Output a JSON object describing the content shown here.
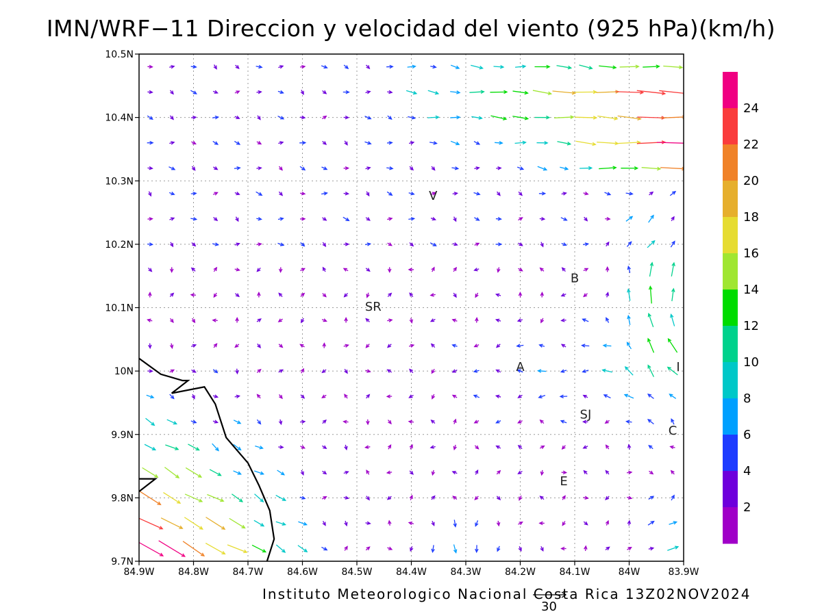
{
  "title": "IMN/WRF−11 Direccion y velocidad del viento (925 hPa)(km/h)",
  "footer": "Instituto Meteorologico Nacional Costa Rica  13Z02NOV2024",
  "reference_vector": {
    "label": "30",
    "speed": 30
  },
  "axes": {
    "lon_ticks": [
      "84.9W",
      "84.8W",
      "84.7W",
      "84.6W",
      "84.5W",
      "84.4W",
      "84.3W",
      "84.2W",
      "84.1W",
      "84W",
      "83.9W"
    ],
    "lat_ticks": [
      "10.5N",
      "10.4N",
      "10.3N",
      "10.2N",
      "10.1N",
      "10N",
      "9.9N",
      "9.8N",
      "9.7N"
    ],
    "lon_range": [
      -84.9,
      -83.9
    ],
    "lat_range": [
      9.7,
      10.5
    ],
    "grid": true
  },
  "colorbar": {
    "labels": [
      "2",
      "4",
      "6",
      "8",
      "10",
      "12",
      "14",
      "16",
      "18",
      "20",
      "22",
      "24"
    ],
    "colors": [
      "#a000c8",
      "#6e00dc",
      "#1e3cff",
      "#00a0ff",
      "#00c8c8",
      "#00d28c",
      "#00dc00",
      "#a0e632",
      "#e6dc32",
      "#e6af2d",
      "#f08228",
      "#fa3c3c",
      "#f00082"
    ]
  },
  "map_labels": [
    {
      "text": "V",
      "lon": -84.36,
      "lat": 10.27
    },
    {
      "text": "SR",
      "lon": -84.47,
      "lat": 10.095
    },
    {
      "text": "B",
      "lon": -84.1,
      "lat": 10.14
    },
    {
      "text": "A",
      "lon": -84.2,
      "lat": 10.0
    },
    {
      "text": "SJ",
      "lon": -84.08,
      "lat": 9.925
    },
    {
      "text": "C",
      "lon": -83.92,
      "lat": 9.9
    },
    {
      "text": "E",
      "lon": -84.12,
      "lat": 9.82
    },
    {
      "text": "I",
      "lon": -83.91,
      "lat": 10.0
    }
  ],
  "coastline": [
    [
      -84.9,
      10.02
    ],
    [
      -84.86,
      9.995
    ],
    [
      -84.82,
      9.985
    ],
    [
      -84.81,
      9.985
    ],
    [
      -84.84,
      9.965
    ],
    [
      -84.78,
      9.975
    ],
    [
      -84.76,
      9.948
    ],
    [
      -84.74,
      9.895
    ],
    [
      -84.72,
      9.875
    ],
    [
      -84.7,
      9.855
    ],
    [
      -84.68,
      9.82
    ],
    [
      -84.66,
      9.78
    ],
    [
      -84.652,
      9.735
    ],
    [
      -84.665,
      9.7
    ]
  ],
  "peninsula_line": [
    [
      -84.9,
      9.83
    ],
    [
      -84.87,
      9.83
    ],
    [
      -84.9,
      9.81
    ]
  ],
  "color_scale": [
    {
      "max": 2,
      "color": "#a000c8"
    },
    {
      "max": 4,
      "color": "#6e00dc"
    },
    {
      "max": 6,
      "color": "#1e3cff"
    },
    {
      "max": 8,
      "color": "#00a0ff"
    },
    {
      "max": 10,
      "color": "#00c8c8"
    },
    {
      "max": 12,
      "color": "#00d28c"
    },
    {
      "max": 14,
      "color": "#00dc00"
    },
    {
      "max": 16,
      "color": "#a0e632"
    },
    {
      "max": 18,
      "color": "#e6dc32"
    },
    {
      "max": 20,
      "color": "#e6af2d"
    },
    {
      "max": 22,
      "color": "#f08228"
    },
    {
      "max": 24,
      "color": "#fa3c3c"
    },
    {
      "max": 999,
      "color": "#f00082"
    }
  ]
}
